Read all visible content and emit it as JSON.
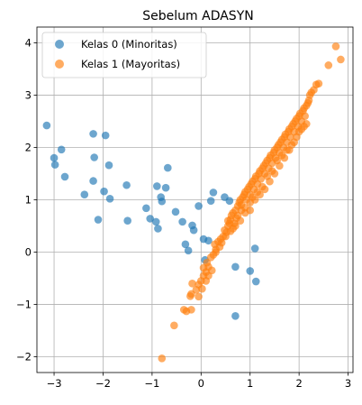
{
  "chart_data": {
    "type": "scatter",
    "title": "Sebelum ADASYN",
    "xlabel": "",
    "ylabel": "",
    "xlim": [
      -3.35,
      3.1
    ],
    "ylim": [
      -2.3,
      4.3
    ],
    "xticks": [
      -3,
      -2,
      -1,
      0,
      1,
      2,
      3
    ],
    "yticks": [
      -2,
      -1,
      0,
      1,
      2,
      3,
      4
    ],
    "grid": true,
    "legend_position": "top-left",
    "series": [
      {
        "name": "Kelas 0 (Minoritas)",
        "color": "#1f77b4",
        "points": [
          [
            -3.15,
            2.42
          ],
          [
            -3.0,
            1.8
          ],
          [
            -2.98,
            1.67
          ],
          [
            -2.85,
            1.96
          ],
          [
            -2.78,
            1.44
          ],
          [
            -2.38,
            1.1
          ],
          [
            -2.2,
            2.26
          ],
          [
            -2.18,
            1.81
          ],
          [
            -2.2,
            1.36
          ],
          [
            -2.1,
            0.62
          ],
          [
            -1.95,
            2.23
          ],
          [
            -1.98,
            1.16
          ],
          [
            -1.88,
            1.66
          ],
          [
            -1.86,
            1.02
          ],
          [
            -1.52,
            1.28
          ],
          [
            -1.5,
            0.6
          ],
          [
            -1.12,
            0.84
          ],
          [
            -1.04,
            0.64
          ],
          [
            -0.9,
            1.26
          ],
          [
            -0.92,
            0.58
          ],
          [
            -0.82,
            1.05
          ],
          [
            -0.8,
            0.97
          ],
          [
            -0.88,
            0.45
          ],
          [
            -0.72,
            1.23
          ],
          [
            -0.68,
            1.61
          ],
          [
            -0.52,
            0.77
          ],
          [
            -0.38,
            0.58
          ],
          [
            -0.32,
            0.15
          ],
          [
            -0.26,
            0.03
          ],
          [
            -0.18,
            0.51
          ],
          [
            -0.15,
            0.42
          ],
          [
            -0.05,
            0.88
          ],
          [
            0.05,
            0.25
          ],
          [
            0.15,
            0.22
          ],
          [
            0.2,
            0.98
          ],
          [
            0.25,
            1.14
          ],
          [
            0.48,
            1.05
          ],
          [
            0.58,
            0.98
          ],
          [
            0.7,
            -0.28
          ],
          [
            0.7,
            -1.22
          ],
          [
            1.0,
            -0.36
          ],
          [
            1.1,
            0.07
          ],
          [
            1.12,
            -0.56
          ],
          [
            0.08,
            -0.15
          ]
        ]
      },
      {
        "name": "Kelas 1 (Mayoritas)",
        "color": "#ff7f0e",
        "points": [
          [
            -0.8,
            -2.03
          ],
          [
            -0.55,
            -1.4
          ],
          [
            -0.35,
            -1.1
          ],
          [
            -0.3,
            -1.13
          ],
          [
            -0.2,
            -1.1
          ],
          [
            -0.22,
            -0.84
          ],
          [
            -0.2,
            -0.8
          ],
          [
            -0.1,
            -0.72
          ],
          [
            -0.05,
            -0.62
          ],
          [
            0.0,
            -0.55
          ],
          [
            -0.18,
            -0.6
          ],
          [
            0.05,
            -0.45
          ],
          [
            0.1,
            -0.38
          ],
          [
            0.15,
            -0.28
          ],
          [
            0.12,
            -0.2
          ],
          [
            0.2,
            -0.1
          ],
          [
            0.25,
            -0.05
          ],
          [
            0.3,
            0.05
          ],
          [
            0.28,
            0.15
          ],
          [
            0.35,
            0.2
          ],
          [
            0.4,
            0.25
          ],
          [
            0.45,
            0.3
          ],
          [
            0.48,
            0.42
          ],
          [
            0.52,
            0.38
          ],
          [
            0.55,
            0.5
          ],
          [
            0.58,
            0.55
          ],
          [
            0.6,
            0.62
          ],
          [
            0.62,
            0.7
          ],
          [
            0.65,
            0.75
          ],
          [
            0.7,
            0.8
          ],
          [
            0.72,
            0.65
          ],
          [
            0.75,
            0.88
          ],
          [
            0.78,
            0.95
          ],
          [
            0.8,
            1.0
          ],
          [
            0.82,
            0.9
          ],
          [
            0.85,
            1.05
          ],
          [
            0.88,
            1.1
          ],
          [
            0.9,
            1.15
          ],
          [
            0.92,
            1.0
          ],
          [
            0.95,
            1.2
          ],
          [
            0.98,
            1.25
          ],
          [
            1.0,
            1.1
          ],
          [
            1.02,
            1.3
          ],
          [
            1.05,
            1.35
          ],
          [
            1.08,
            1.2
          ],
          [
            1.1,
            1.4
          ],
          [
            1.12,
            1.45
          ],
          [
            1.15,
            1.3
          ],
          [
            1.18,
            1.5
          ],
          [
            1.2,
            1.55
          ],
          [
            1.22,
            1.4
          ],
          [
            1.25,
            1.6
          ],
          [
            1.28,
            1.65
          ],
          [
            1.3,
            1.5
          ],
          [
            1.32,
            1.7
          ],
          [
            1.35,
            1.75
          ],
          [
            1.38,
            1.6
          ],
          [
            1.4,
            1.8
          ],
          [
            1.42,
            1.85
          ],
          [
            1.45,
            1.7
          ],
          [
            1.48,
            1.9
          ],
          [
            1.5,
            1.95
          ],
          [
            1.52,
            1.8
          ],
          [
            1.55,
            2.0
          ],
          [
            1.58,
            2.05
          ],
          [
            1.6,
            1.9
          ],
          [
            1.62,
            2.1
          ],
          [
            1.65,
            2.15
          ],
          [
            1.68,
            2.0
          ],
          [
            1.7,
            2.2
          ],
          [
            1.72,
            2.25
          ],
          [
            1.75,
            2.1
          ],
          [
            1.78,
            2.3
          ],
          [
            1.8,
            2.35
          ],
          [
            1.82,
            2.2
          ],
          [
            1.85,
            2.4
          ],
          [
            1.88,
            2.45
          ],
          [
            1.9,
            2.3
          ],
          [
            1.92,
            2.5
          ],
          [
            1.95,
            2.55
          ],
          [
            1.98,
            2.4
          ],
          [
            2.0,
            2.6
          ],
          [
            2.02,
            2.65
          ],
          [
            2.05,
            2.5
          ],
          [
            2.08,
            2.7
          ],
          [
            2.1,
            2.75
          ],
          [
            2.12,
            2.6
          ],
          [
            2.15,
            2.8
          ],
          [
            2.18,
            2.85
          ],
          [
            2.2,
            2.9
          ],
          [
            2.22,
            3.0
          ],
          [
            2.25,
            3.05
          ],
          [
            2.3,
            3.1
          ],
          [
            2.35,
            3.2
          ],
          [
            2.4,
            3.22
          ],
          [
            2.6,
            3.57
          ],
          [
            2.75,
            3.93
          ],
          [
            2.85,
            3.68
          ],
          [
            0.55,
            0.6
          ],
          [
            0.6,
            0.4
          ],
          [
            0.68,
            0.55
          ],
          [
            0.75,
            0.7
          ],
          [
            0.82,
            0.8
          ],
          [
            0.9,
            0.85
          ],
          [
            1.0,
            0.95
          ],
          [
            1.05,
            1.05
          ],
          [
            1.15,
            1.15
          ],
          [
            1.25,
            1.25
          ],
          [
            1.35,
            1.45
          ],
          [
            1.45,
            1.55
          ],
          [
            1.55,
            1.75
          ],
          [
            1.65,
            1.85
          ],
          [
            1.75,
            1.95
          ],
          [
            1.85,
            2.05
          ],
          [
            1.95,
            2.2
          ],
          [
            2.05,
            2.35
          ],
          [
            2.15,
            2.45
          ],
          [
            0.3,
            0.0
          ],
          [
            0.38,
            0.1
          ],
          [
            0.42,
            0.18
          ],
          [
            0.5,
            0.3
          ],
          [
            0.65,
            0.45
          ],
          [
            0.7,
            0.5
          ],
          [
            0.8,
            0.6
          ],
          [
            0.9,
            0.75
          ],
          [
            1.0,
            0.8
          ],
          [
            1.1,
            1.0
          ],
          [
            1.2,
            1.1
          ],
          [
            1.3,
            1.2
          ],
          [
            1.4,
            1.35
          ],
          [
            1.5,
            1.5
          ],
          [
            1.6,
            1.65
          ],
          [
            1.7,
            1.8
          ],
          [
            1.8,
            1.95
          ],
          [
            1.9,
            2.1
          ],
          [
            2.0,
            2.3
          ],
          [
            2.1,
            2.4
          ],
          [
            0.15,
            -0.45
          ],
          [
            0.05,
            -0.3
          ],
          [
            0.22,
            -0.35
          ],
          [
            0.1,
            -0.55
          ],
          [
            -0.05,
            -0.85
          ],
          [
            0.02,
            -0.7
          ]
        ]
      }
    ]
  }
}
